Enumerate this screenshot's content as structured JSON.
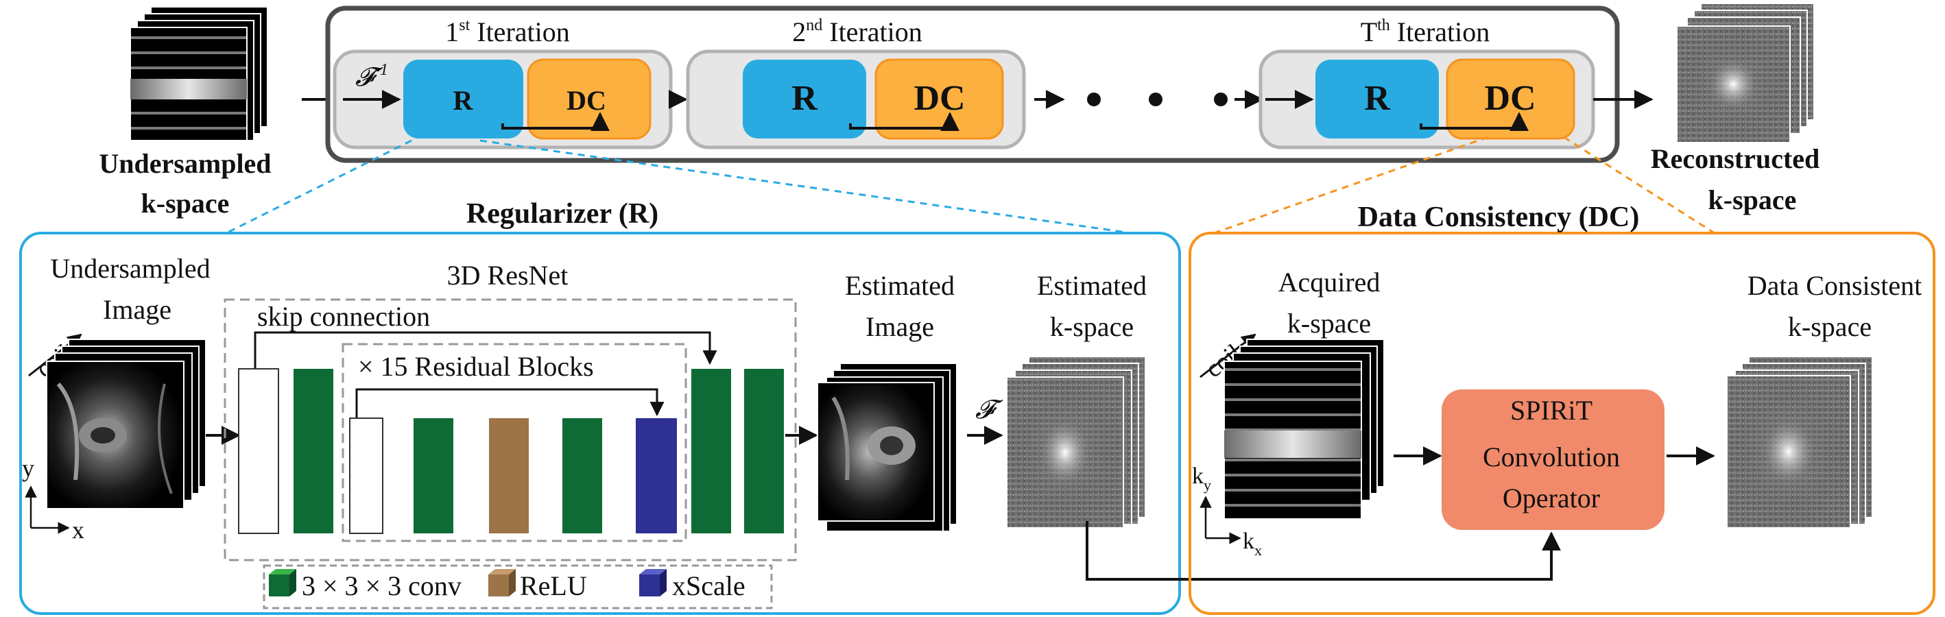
{
  "top": {
    "undersampled_kspace": [
      "Undersampled",
      "k-space"
    ],
    "reconstructed_kspace": [
      "Reconstructed",
      "k-space"
    ],
    "iterations": [
      {
        "label_pre": "1",
        "label_sup": "st",
        "label_post": " Iteration"
      },
      {
        "label_pre": "2",
        "label_sup": "nd",
        "label_post": " Iteration"
      },
      {
        "label_pre": "T",
        "label_sup": "th",
        "label_post": " Iteration"
      }
    ],
    "r_label": "R",
    "dc_label": "DC",
    "inverse_fourier": "𝓕",
    "inverse_sup": "-1"
  },
  "regularizer": {
    "title": "Regularizer (R)",
    "undersampled_image": [
      "Undersampled",
      "Image"
    ],
    "coil_label": "coil",
    "axis_y": "y",
    "axis_x": "x",
    "resnet_title": "3D ResNet",
    "skip_connection": "skip connection",
    "residual_blocks": "× 15 Residual Blocks",
    "estimated_image": [
      "Estimated",
      "Image"
    ],
    "estimated_kspace": [
      "Estimated",
      "k-space"
    ],
    "fourier": "𝓕",
    "legend": [
      {
        "label": "3 × 3 × 3 conv",
        "color": "#0f6b35",
        "icon": "green-cube-icon"
      },
      {
        "label": "ReLU",
        "color": "#9c7448",
        "icon": "brown-cube-icon"
      },
      {
        "label": "xScale",
        "color": "#2e3192",
        "icon": "blue-cube-icon"
      }
    ]
  },
  "data_consistency": {
    "title": "Data Consistency (DC)",
    "acquired_kspace": [
      "Acquired",
      "k-space"
    ],
    "coil_label": "coil",
    "axis_ky": "k",
    "axis_ky_sub": "y",
    "axis_kx": "k",
    "axis_kx_sub": "x",
    "operator": [
      "SPIRiT",
      "Convolution",
      "Operator"
    ],
    "consistent_kspace": [
      "Data Consistent",
      "k-space"
    ]
  },
  "colors": {
    "regularizer_blue": "#29abe2",
    "dc_orange": "#f7931e",
    "r_block": "#29abe2",
    "dc_block": "#fbb040",
    "operator": "#f08a6a",
    "conv_green": "#0f6b35",
    "relu_brown": "#9c7448",
    "xscale_blue": "#2e3192"
  }
}
